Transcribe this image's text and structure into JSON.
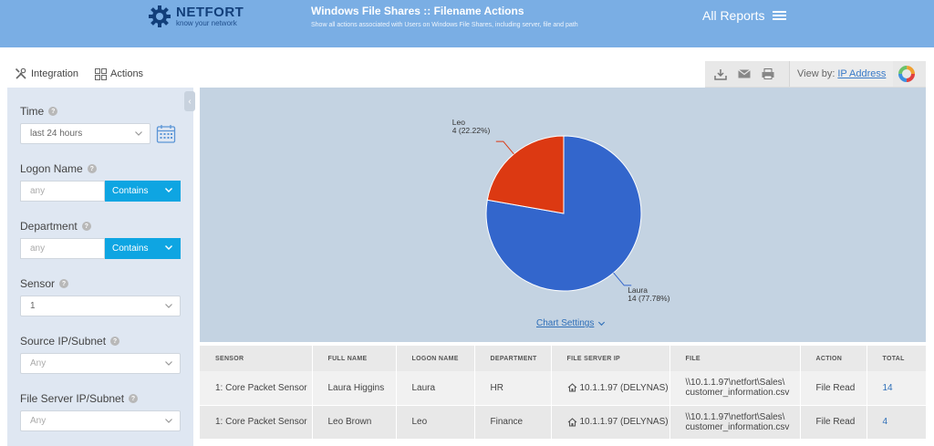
{
  "header": {
    "logo_name": "NETFORT",
    "logo_tagline": "know your network",
    "title": "Windows File Shares :: Filename Actions",
    "subtitle": "Show all actions associated with Users on Windows File Shares, including server, file and path",
    "all_reports": "All Reports"
  },
  "nav": {
    "integration": "Integration",
    "actions": "Actions"
  },
  "toolbar": {
    "view_by_label": "View by:",
    "view_by_value": "IP Address",
    "icons": [
      "download-icon",
      "email-icon",
      "print-icon"
    ]
  },
  "filters": {
    "time": {
      "label": "Time",
      "value": "last 24 hours"
    },
    "logon_name": {
      "label": "Logon Name",
      "placeholder": "any",
      "mode": "Contains"
    },
    "department": {
      "label": "Department",
      "placeholder": "any",
      "mode": "Contains"
    },
    "sensor": {
      "label": "Sensor",
      "value": "1"
    },
    "source_ip": {
      "label": "Source IP/Subnet",
      "value": "Any"
    },
    "file_server_ip": {
      "label": "File Server IP/Subnet",
      "value": "Any"
    }
  },
  "chart_data": {
    "type": "pie",
    "categories": [
      "Laura",
      "Leo"
    ],
    "values": [
      14,
      4
    ],
    "labels": [
      {
        "name": "Laura",
        "detail": "14 (77.78%)"
      },
      {
        "name": "Leo",
        "detail": "4 (22.22%)"
      }
    ],
    "colors": [
      "#3366cc",
      "#dc3912"
    ],
    "legend": "none"
  },
  "chart_settings": "Chart Settings",
  "table": {
    "columns": [
      "SENSOR",
      "FULL NAME",
      "LOGON NAME",
      "DEPARTMENT",
      "FILE SERVER IP",
      "FILE",
      "ACTION",
      "TOTAL"
    ],
    "rows": [
      {
        "sensor": "1: Core Packet Sensor",
        "full_name": "Laura Higgins",
        "logon_name": "Laura",
        "department": "HR",
        "file_server_ip": "10.1.1.97 (DELYNAS)",
        "file_line1": "\\\\10.1.1.97\\netfort\\Sales\\",
        "file_line2": "customer_information.csv",
        "action": "File Read",
        "total": "14"
      },
      {
        "sensor": "1: Core Packet Sensor",
        "full_name": "Leo Brown",
        "logon_name": "Leo",
        "department": "Finance",
        "file_server_ip": "10.1.1.97 (DELYNAS)",
        "file_line1": "\\\\10.1.1.97\\netfort\\Sales\\",
        "file_line2": "customer_information.csv",
        "action": "File Read",
        "total": "4"
      }
    ]
  },
  "colors": {
    "header_bg": "#7aaee4",
    "sidebar_bg": "#dfe7f2",
    "chart_bg": "#c4d3e2",
    "accent": "#0ea5e2",
    "link": "#2f6fb8"
  }
}
